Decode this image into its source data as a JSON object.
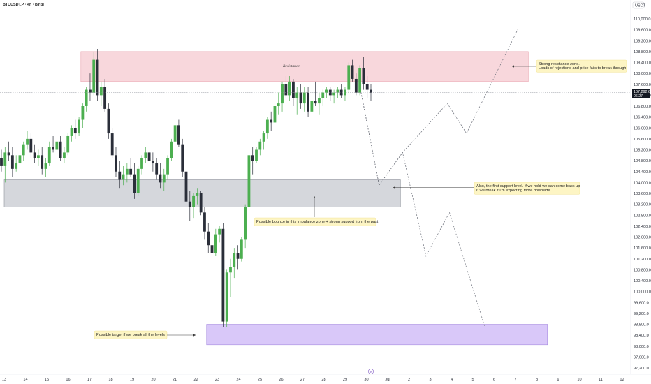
{
  "header": {
    "symbol": "BTCUSDT.P · 4h · BYBIT",
    "currency": "USDT"
  },
  "price_badge": {
    "price": "107,292.6",
    "countdown": "06:27"
  },
  "colors": {
    "bull": "#26a69a",
    "bull_fill": "#4caf50",
    "bear": "#2a2e39",
    "resistance_fill": "#f8d7dc",
    "resistance_stroke": "#e8a3ae",
    "imbalance_fill": "#d5d7dc",
    "imbalance_stroke": "#8f949c",
    "target_fill": "#d9c8f9",
    "target_stroke": "#a78be0",
    "note_bg": "#fdf5c4",
    "projection": "#6b6f79"
  },
  "annotations": {
    "resistance_label": "Resistance",
    "resistance_note_1": "Strong resistance zone.",
    "resistance_note_2": "Loads of rejections and price fails to break through",
    "support_note_1": "Also, the first support level. If we hold we can come back up",
    "support_note_2": "If we break it I'm expecting more downside",
    "bounce_note": "Possible bounce in this imbalance zone + strong support from the past",
    "target_note": "Possible target if we break all the levels"
  },
  "chart_data": {
    "type": "candlestick",
    "timeframe": "4h",
    "y_axis": {
      "ticks": [
        "110,000.0",
        "109,600.0",
        "109,200.0",
        "108,800.0",
        "108,400.0",
        "108,000.0",
        "107,600.0",
        "107,200.0",
        "106,800.0",
        "106,400.0",
        "106,000.0",
        "105,600.0",
        "105,200.0",
        "104,800.0",
        "104,400.0",
        "104,000.0",
        "103,600.0",
        "103,200.0",
        "102,800.0",
        "102,400.0",
        "102,000.0",
        "101,600.0",
        "101,200.0",
        "100,800.0",
        "100,400.0",
        "100,000.0",
        "99,600.0",
        "99,200.0",
        "98,800.0",
        "98,400.0",
        "98,000.0",
        "97,600.0",
        "97,200.0"
      ],
      "tick_values": [
        110000,
        109600,
        109200,
        108800,
        108400,
        108000,
        107600,
        107200,
        106800,
        106400,
        106000,
        105600,
        105200,
        104800,
        104400,
        104000,
        103600,
        103200,
        102800,
        102400,
        102000,
        101600,
        101200,
        100800,
        100400,
        100000,
        99600,
        99200,
        98800,
        98400,
        98000,
        97600,
        97200
      ],
      "range": [
        97000,
        110100
      ]
    },
    "x_axis": {
      "labels": [
        "13",
        "14",
        "15",
        "16",
        "17",
        "18",
        "19",
        "20",
        "21",
        "22",
        "23",
        "24",
        "25",
        "26",
        "27",
        "28",
        "29",
        "30",
        "Jul",
        "2",
        "3",
        "4",
        "5",
        "6",
        "7",
        "8",
        "9",
        "10",
        "11",
        "12"
      ]
    },
    "current_price": 107292.6,
    "zones": [
      {
        "name": "resistance",
        "from_day": 16.6,
        "to_day": 7.6,
        "to_month": "Jul",
        "low": 107700,
        "high": 108800
      },
      {
        "name": "imbalance",
        "from_day": 13,
        "to_day": 1.6,
        "to_month": "Jul",
        "low": 103100,
        "high": 104100
      },
      {
        "name": "target",
        "from_day": 22.5,
        "to_day": 8.5,
        "to_month": "Jul",
        "low": 98050,
        "high": 98800
      }
    ],
    "candles_ohlc": [
      [
        104900,
        105200,
        104400,
        104600
      ],
      [
        104600,
        105300,
        104000,
        105100
      ],
      [
        105100,
        105500,
        104800,
        105000
      ],
      [
        105000,
        105300,
        104200,
        104500
      ],
      [
        104500,
        105000,
        104400,
        104700
      ],
      [
        104700,
        105100,
        104600,
        105000
      ],
      [
        105000,
        105500,
        104800,
        105400
      ],
      [
        105400,
        105900,
        105200,
        105600
      ],
      [
        105600,
        105800,
        104900,
        105100
      ],
      [
        105100,
        105400,
        104700,
        104900
      ],
      [
        104900,
        105200,
        104600,
        105000
      ],
      [
        105000,
        105300,
        104300,
        104500
      ],
      [
        104500,
        104900,
        104200,
        104700
      ],
      [
        104700,
        105500,
        104600,
        105300
      ],
      [
        105300,
        105700,
        105100,
        105200
      ],
      [
        105200,
        105600,
        105000,
        105500
      ],
      [
        105500,
        105700,
        104800,
        104900
      ],
      [
        104900,
        105300,
        104700,
        105100
      ],
      [
        105100,
        105800,
        105000,
        105700
      ],
      [
        105700,
        106100,
        105500,
        106000
      ],
      [
        106000,
        106300,
        105600,
        105800
      ],
      [
        105800,
        106400,
        105700,
        106300
      ],
      [
        106300,
        106900,
        106000,
        106800
      ],
      [
        106800,
        107500,
        106600,
        107400
      ],
      [
        107400,
        108000,
        107000,
        107300
      ],
      [
        107300,
        108800,
        107200,
        108500
      ],
      [
        108500,
        108900,
        107000,
        107200
      ],
      [
        107200,
        107700,
        106800,
        107500
      ],
      [
        107500,
        107800,
        106600,
        106700
      ],
      [
        106700,
        106900,
        105600,
        105800
      ],
      [
        105800,
        106000,
        104900,
        105000
      ],
      [
        105000,
        105300,
        104200,
        104400
      ],
      [
        104400,
        104800,
        103800,
        104100
      ],
      [
        104100,
        104600,
        103900,
        104300
      ],
      [
        104300,
        104700,
        104000,
        104500
      ],
      [
        104500,
        104900,
        104200,
        104300
      ],
      [
        104300,
        104700,
        103400,
        103600
      ],
      [
        103600,
        104600,
        103500,
        104500
      ],
      [
        104500,
        105000,
        104300,
        104900
      ],
      [
        104900,
        105300,
        104700,
        105100
      ],
      [
        105100,
        105400,
        104600,
        104800
      ],
      [
        104800,
        105100,
        104400,
        104700
      ],
      [
        104700,
        104900,
        104100,
        104300
      ],
      [
        104300,
        104700,
        103800,
        104000
      ],
      [
        104000,
        104500,
        103700,
        104300
      ],
      [
        104300,
        105000,
        104100,
        104900
      ],
      [
        104900,
        105600,
        104800,
        105500
      ],
      [
        105500,
        106200,
        105300,
        106100
      ],
      [
        106100,
        106300,
        105300,
        105400
      ],
      [
        105400,
        105600,
        104200,
        104400
      ],
      [
        104400,
        104600,
        103000,
        103300
      ],
      [
        103300,
        103700,
        102600,
        103100
      ],
      [
        103100,
        103600,
        102700,
        103500
      ],
      [
        103500,
        103800,
        103200,
        103600
      ],
      [
        103600,
        103700,
        102800,
        102900
      ],
      [
        102900,
        103100,
        101900,
        102200
      ],
      [
        102200,
        102500,
        101400,
        101700
      ],
      [
        101700,
        102100,
        100800,
        101400
      ],
      [
        101400,
        102300,
        101300,
        102100
      ],
      [
        102100,
        102400,
        101800,
        102300
      ],
      [
        102300,
        102500,
        98700,
        98900
      ],
      [
        98900,
        100800,
        98700,
        100700
      ],
      [
        100700,
        101200,
        99800,
        100900
      ],
      [
        100900,
        101600,
        100500,
        101400
      ],
      [
        101400,
        101700,
        100800,
        101200
      ],
      [
        101200,
        102000,
        101100,
        101900
      ],
      [
        101900,
        103200,
        101600,
        103100
      ],
      [
        103100,
        105100,
        102900,
        105000
      ],
      [
        105000,
        105300,
        104300,
        104800
      ],
      [
        104800,
        105300,
        104700,
        105200
      ],
      [
        105200,
        105600,
        105000,
        105500
      ],
      [
        105500,
        105900,
        105200,
        105800
      ],
      [
        105800,
        106400,
        105600,
        106300
      ],
      [
        106300,
        106600,
        105900,
        106200
      ],
      [
        106200,
        106900,
        106100,
        106800
      ],
      [
        106800,
        107300,
        106500,
        106900
      ],
      [
        106900,
        107700,
        106600,
        107600
      ],
      [
        107600,
        107900,
        107100,
        107200
      ],
      [
        107200,
        107900,
        107000,
        107700
      ],
      [
        107700,
        107800,
        106800,
        107100
      ],
      [
        107100,
        107500,
        106500,
        107300
      ],
      [
        107300,
        107600,
        106700,
        106900
      ],
      [
        106900,
        107500,
        106600,
        107300
      ],
      [
        107300,
        107500,
        106400,
        106600
      ],
      [
        106600,
        107200,
        106500,
        107000
      ],
      [
        107000,
        107700,
        106800,
        106900
      ],
      [
        106900,
        107300,
        106500,
        107100
      ],
      [
        107100,
        107400,
        106800,
        107300
      ],
      [
        107300,
        107500,
        107100,
        107400
      ],
      [
        107400,
        107500,
        107000,
        107200
      ],
      [
        107200,
        107400,
        106900,
        107300
      ],
      [
        107300,
        107500,
        107100,
        107400
      ],
      [
        107400,
        107600,
        107100,
        107200
      ],
      [
        107200,
        107500,
        107000,
        107400
      ],
      [
        107400,
        108400,
        107300,
        108300
      ],
      [
        108300,
        108500,
        107700,
        107800
      ],
      [
        107800,
        108000,
        107200,
        107300
      ],
      [
        107300,
        108300,
        107200,
        108200
      ],
      [
        108200,
        108600,
        107400,
        107600
      ],
      [
        107600,
        107900,
        107100,
        107400
      ],
      [
        107400,
        107600,
        107000,
        107292.6
      ]
    ],
    "projections": [
      {
        "name": "bullish-path",
        "points": [
          [
            29.75,
            107300
          ],
          [
            30.6,
            103900
          ],
          [
            31.7,
            105100
          ],
          [
            33.8,
            106900
          ],
          [
            34.7,
            105800
          ],
          [
            37.1,
            109600
          ]
        ]
      },
      {
        "name": "bearish-path",
        "points": [
          [
            29.75,
            107300
          ],
          [
            30.6,
            103900
          ],
          [
            31.7,
            105100
          ],
          [
            32.8,
            101300
          ],
          [
            33.9,
            102900
          ],
          [
            35.6,
            98600
          ]
        ]
      }
    ]
  }
}
